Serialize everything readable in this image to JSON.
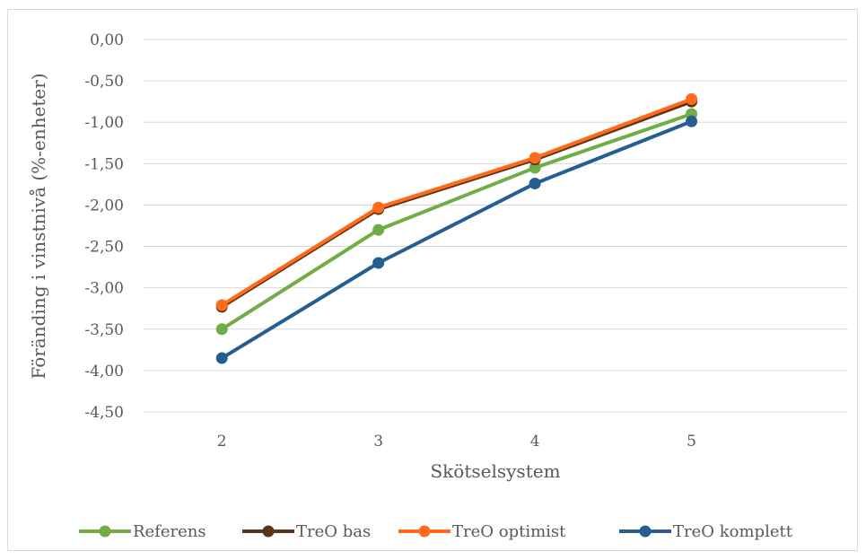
{
  "chart_data": {
    "type": "line",
    "title": "",
    "xlabel": "Skötselsystem",
    "ylabel": "Föränding i vinstnivå (%-enheter)",
    "categories": [
      "2",
      "3",
      "4",
      "5"
    ],
    "ylim": [
      -4.5,
      0
    ],
    "yticks": [
      "0,00",
      "-0,50",
      "-1,00",
      "-1,50",
      "-2,00",
      "-2,50",
      "-3,00",
      "-3,50",
      "-4,00",
      "-4,50"
    ],
    "ytick_values": [
      0,
      -0.5,
      -1,
      -1.5,
      -2,
      -2.5,
      -3,
      -3.5,
      -4,
      -4.5
    ],
    "grid": true,
    "legend_position": "bottom",
    "series": [
      {
        "name": "Referens",
        "color": "#70ad47",
        "values": [
          -3.5,
          -2.3,
          -1.55,
          -0.9
        ]
      },
      {
        "name": "TreO bas",
        "color": "#5a3519",
        "values": [
          -3.23,
          -2.05,
          -1.45,
          -0.75
        ]
      },
      {
        "name": "TreO optimist",
        "color": "#ff6b1a",
        "values": [
          -3.21,
          -2.03,
          -1.43,
          -0.72
        ]
      },
      {
        "name": "TreO komplett",
        "color": "#255e91",
        "values": [
          -3.85,
          -2.7,
          -1.74,
          -0.99
        ]
      }
    ]
  }
}
